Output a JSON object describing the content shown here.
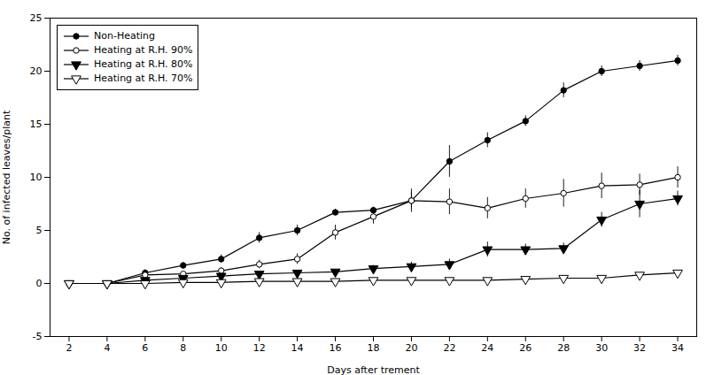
{
  "chart_data": {
    "type": "line",
    "xlabel": "Days after trement",
    "ylabel": "No. of infected leaves/plant",
    "x": [
      2,
      4,
      6,
      8,
      10,
      12,
      14,
      16,
      18,
      20,
      22,
      24,
      26,
      28,
      30,
      32,
      34
    ],
    "series": [
      {
        "name": "Non-Heating",
        "color": "#000000",
        "marker": "circle",
        "values": [
          0.0,
          0.0,
          1.0,
          1.7,
          2.3,
          4.3,
          5.0,
          6.7,
          6.9,
          7.8,
          11.5,
          13.5,
          15.3,
          18.2,
          20.0,
          20.5,
          21.0
        ],
        "yerr": [
          0.05,
          0.05,
          0.3,
          0.3,
          0.4,
          0.5,
          0.5,
          0.3,
          0.3,
          1.1,
          1.5,
          0.7,
          0.5,
          0.7,
          0.5,
          0.5,
          0.5
        ]
      },
      {
        "name": "Heating at R.H. 90%",
        "color": "#000000",
        "marker": "circle-open",
        "values": [
          0.0,
          0.0,
          0.8,
          0.9,
          1.2,
          1.8,
          2.3,
          4.8,
          6.3,
          7.8,
          7.7,
          7.1,
          8.0,
          8.5,
          9.2,
          9.3,
          10.0
        ],
        "yerr": [
          0.05,
          0.05,
          0.2,
          0.2,
          0.3,
          0.4,
          0.5,
          0.7,
          0.7,
          0.8,
          1.2,
          1.0,
          0.9,
          1.3,
          1.2,
          1.0,
          1.0
        ]
      },
      {
        "name": "Heating at R.H. 80%",
        "color": "#000000",
        "marker": "triangle-down",
        "values": [
          0.0,
          0.0,
          0.3,
          0.5,
          0.7,
          0.9,
          1.0,
          1.1,
          1.4,
          1.6,
          1.8,
          3.2,
          3.2,
          3.3,
          6.0,
          7.5,
          8.0
        ],
        "yerr": [
          0.05,
          0.05,
          0.15,
          0.2,
          0.2,
          0.2,
          0.2,
          0.2,
          0.3,
          0.4,
          0.5,
          0.7,
          0.5,
          0.5,
          0.7,
          1.3,
          0.7
        ]
      },
      {
        "name": "Heating at R.H. 70%",
        "color": "#000000",
        "marker": "triangle-down-open",
        "values": [
          0.0,
          0.0,
          0.0,
          0.1,
          0.1,
          0.2,
          0.2,
          0.2,
          0.3,
          0.3,
          0.3,
          0.3,
          0.4,
          0.5,
          0.5,
          0.8,
          1.0
        ],
        "yerr": [
          0.02,
          0.02,
          0.02,
          0.05,
          0.05,
          0.05,
          0.05,
          0.05,
          0.05,
          0.05,
          0.05,
          0.05,
          0.1,
          0.1,
          0.1,
          0.2,
          0.2
        ]
      }
    ],
    "xlim": [
      1,
      35
    ],
    "ylim": [
      -5,
      25
    ],
    "xticks": [
      2,
      4,
      6,
      8,
      10,
      12,
      14,
      16,
      18,
      20,
      22,
      24,
      26,
      28,
      30,
      32,
      34
    ],
    "yticks": [
      -5,
      0,
      5,
      10,
      15,
      20,
      25
    ],
    "legend": "upper left"
  }
}
